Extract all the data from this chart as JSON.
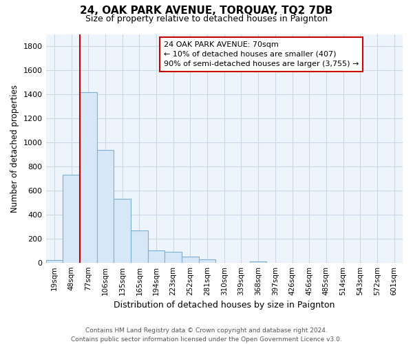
{
  "title": "24, OAK PARK AVENUE, TORQUAY, TQ2 7DB",
  "subtitle": "Size of property relative to detached houses in Paignton",
  "xlabel": "Distribution of detached houses by size in Paignton",
  "ylabel": "Number of detached properties",
  "bar_labels": [
    "19sqm",
    "48sqm",
    "77sqm",
    "106sqm",
    "135sqm",
    "165sqm",
    "194sqm",
    "223sqm",
    "252sqm",
    "281sqm",
    "310sqm",
    "339sqm",
    "368sqm",
    "397sqm",
    "426sqm",
    "456sqm",
    "485sqm",
    "514sqm",
    "543sqm",
    "572sqm",
    "601sqm"
  ],
  "bar_values": [
    20,
    730,
    1420,
    935,
    530,
    270,
    100,
    90,
    50,
    28,
    0,
    0,
    12,
    0,
    0,
    0,
    0,
    0,
    0,
    0,
    0
  ],
  "bar_color": "#d6e8f7",
  "bar_edge_color": "#7bafd4",
  "vline_index": 2,
  "vline_color": "#cc0000",
  "ylim": [
    0,
    1900
  ],
  "yticks": [
    0,
    200,
    400,
    600,
    800,
    1000,
    1200,
    1400,
    1600,
    1800
  ],
  "annotation_text_line1": "24 OAK PARK AVENUE: 70sqm",
  "annotation_text_line2": "← 10% of detached houses are smaller (407)",
  "annotation_text_line3": "90% of semi-detached houses are larger (3,755) →",
  "footer_line1": "Contains HM Land Registry data © Crown copyright and database right 2024.",
  "footer_line2": "Contains public sector information licensed under the Open Government Licence v3.0.",
  "background_color": "#ffffff",
  "plot_bg_color": "#eef4fb",
  "grid_color": "#c8d8e8"
}
